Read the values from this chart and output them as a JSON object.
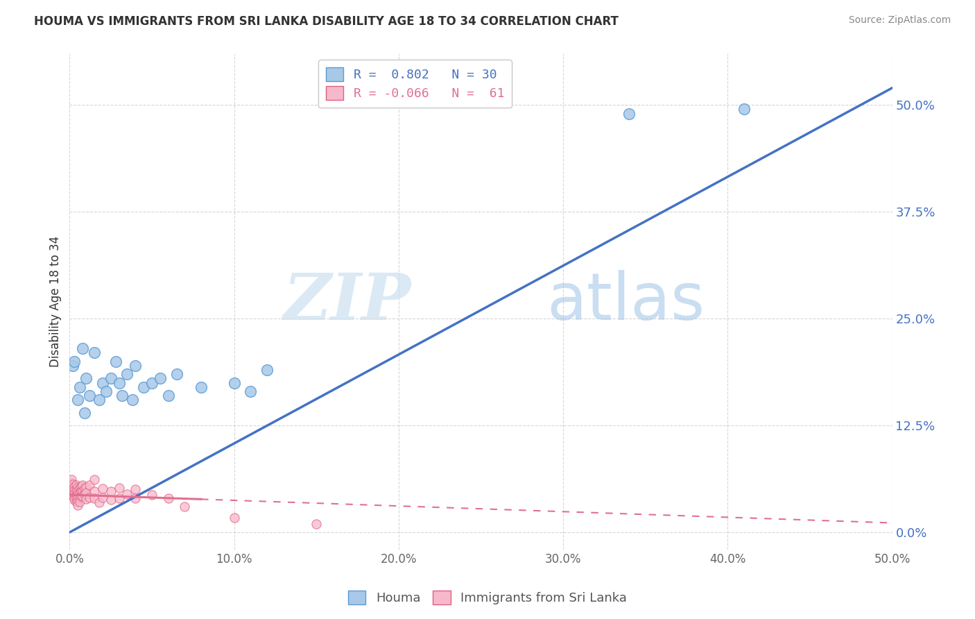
{
  "title": "HOUMA VS IMMIGRANTS FROM SRI LANKA DISABILITY AGE 18 TO 34 CORRELATION CHART",
  "source": "Source: ZipAtlas.com",
  "ylabel": "Disability Age 18 to 34",
  "yaxis_ticks": [
    "0.0%",
    "12.5%",
    "25.0%",
    "37.5%",
    "50.0%"
  ],
  "yaxis_tick_vals": [
    0.0,
    0.125,
    0.25,
    0.375,
    0.5
  ],
  "xtick_vals": [
    0.0,
    0.1,
    0.2,
    0.3,
    0.4,
    0.5
  ],
  "xtick_labels": [
    "0.0%",
    "10.0%",
    "20.0%",
    "30.0%",
    "40.0%",
    "50.0%"
  ],
  "xlim": [
    0.0,
    0.5
  ],
  "ylim": [
    -0.02,
    0.56
  ],
  "background_color": "#ffffff",
  "grid_color": "#cccccc",
  "watermark_zip": "ZIP",
  "watermark_atlas": "atlas",
  "legend_line1": "R =  0.802   N = 30",
  "legend_line2": "R = -0.066   N =  61",
  "houma_color": "#a8c8e8",
  "houma_edge_color": "#5b9bd5",
  "sri_lanka_color": "#f7b8cc",
  "sri_lanka_edge_color": "#e06080",
  "line_houma_color": "#4472c4",
  "line_sri_lanka_color": "#e07090",
  "houma_line_slope": 1.04,
  "houma_line_intercept": 0.0,
  "sri_lanka_line_slope": -0.066,
  "sri_lanka_line_intercept": 0.044,
  "houma_points": [
    [
      0.002,
      0.195
    ],
    [
      0.003,
      0.2
    ],
    [
      0.005,
      0.155
    ],
    [
      0.006,
      0.17
    ],
    [
      0.008,
      0.215
    ],
    [
      0.009,
      0.14
    ],
    [
      0.01,
      0.18
    ],
    [
      0.012,
      0.16
    ],
    [
      0.015,
      0.21
    ],
    [
      0.018,
      0.155
    ],
    [
      0.02,
      0.175
    ],
    [
      0.022,
      0.165
    ],
    [
      0.025,
      0.18
    ],
    [
      0.028,
      0.2
    ],
    [
      0.03,
      0.175
    ],
    [
      0.032,
      0.16
    ],
    [
      0.035,
      0.185
    ],
    [
      0.038,
      0.155
    ],
    [
      0.04,
      0.195
    ],
    [
      0.045,
      0.17
    ],
    [
      0.05,
      0.175
    ],
    [
      0.055,
      0.18
    ],
    [
      0.06,
      0.16
    ],
    [
      0.065,
      0.185
    ],
    [
      0.08,
      0.17
    ],
    [
      0.1,
      0.175
    ],
    [
      0.11,
      0.165
    ],
    [
      0.12,
      0.19
    ],
    [
      0.34,
      0.49
    ],
    [
      0.41,
      0.495
    ]
  ],
  "sri_lanka_points": [
    [
      0.0,
      0.055
    ],
    [
      0.0,
      0.052
    ],
    [
      0.001,
      0.058
    ],
    [
      0.001,
      0.062
    ],
    [
      0.001,
      0.05
    ],
    [
      0.001,
      0.045
    ],
    [
      0.002,
      0.056
    ],
    [
      0.002,
      0.05
    ],
    [
      0.002,
      0.046
    ],
    [
      0.002,
      0.042
    ],
    [
      0.003,
      0.054
    ],
    [
      0.003,
      0.049
    ],
    [
      0.003,
      0.045
    ],
    [
      0.003,
      0.041
    ],
    [
      0.003,
      0.038
    ],
    [
      0.004,
      0.055
    ],
    [
      0.004,
      0.049
    ],
    [
      0.004,
      0.044
    ],
    [
      0.004,
      0.04
    ],
    [
      0.004,
      0.036
    ],
    [
      0.005,
      0.053
    ],
    [
      0.005,
      0.048
    ],
    [
      0.005,
      0.044
    ],
    [
      0.005,
      0.04
    ],
    [
      0.005,
      0.036
    ],
    [
      0.005,
      0.032
    ],
    [
      0.006,
      0.052
    ],
    [
      0.006,
      0.046
    ],
    [
      0.006,
      0.041
    ],
    [
      0.006,
      0.036
    ],
    [
      0.007,
      0.054
    ],
    [
      0.007,
      0.048
    ],
    [
      0.007,
      0.042
    ],
    [
      0.008,
      0.055
    ],
    [
      0.008,
      0.048
    ],
    [
      0.008,
      0.042
    ],
    [
      0.009,
      0.051
    ],
    [
      0.009,
      0.045
    ],
    [
      0.01,
      0.053
    ],
    [
      0.01,
      0.046
    ],
    [
      0.01,
      0.039
    ],
    [
      0.012,
      0.055
    ],
    [
      0.012,
      0.041
    ],
    [
      0.015,
      0.062
    ],
    [
      0.015,
      0.048
    ],
    [
      0.015,
      0.04
    ],
    [
      0.018,
      0.035
    ],
    [
      0.02,
      0.051
    ],
    [
      0.02,
      0.041
    ],
    [
      0.025,
      0.048
    ],
    [
      0.025,
      0.038
    ],
    [
      0.03,
      0.052
    ],
    [
      0.03,
      0.04
    ],
    [
      0.035,
      0.045
    ],
    [
      0.04,
      0.05
    ],
    [
      0.04,
      0.04
    ],
    [
      0.05,
      0.044
    ],
    [
      0.06,
      0.04
    ],
    [
      0.07,
      0.03
    ],
    [
      0.1,
      0.017
    ],
    [
      0.15,
      0.01
    ]
  ]
}
